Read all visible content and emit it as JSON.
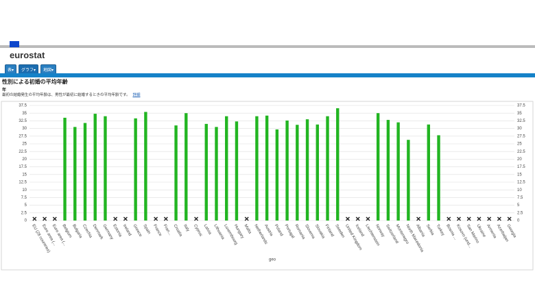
{
  "header": {
    "logo": "eurostat",
    "buttons": [
      "表▾",
      "グラフ▾",
      "地図▾"
    ],
    "title": "性別による初婚の平均年齢",
    "unit": "年",
    "description": "最初の結婚発生の平均年齢は、男性が最初に結婚するときの平均年齢です。",
    "link": "詳細"
  },
  "chart_data": {
    "type": "bar",
    "x_label": "geo",
    "color": "#22b522",
    "grid": true,
    "categories": [
      "EU (28 countries)",
      "Euro area (...",
      "Euro area (...",
      "Belgium",
      "Bulgaria",
      "Czechia",
      "Denmark",
      "Germany",
      "Estonia",
      "Ireland",
      "Greece",
      "Spain",
      "France",
      "Fran...",
      "Croatia",
      "Italy",
      "Cyprus",
      "Latvia",
      "Lithuania",
      "Luxembourg",
      "Hungary",
      "Malta",
      "Netherlands",
      "Austria",
      "Poland",
      "Portugal",
      "Romania",
      "Slovenia",
      "Slovakia",
      "Finland",
      "Sweden",
      "United Kingdom",
      "Iceland",
      "Liechtenstein",
      "Norway",
      "Switzerland",
      "Montenegro",
      "North Macedonia",
      "Albania",
      "Serbia",
      "Turkey",
      "Bosnia ...",
      "Kosovo (und...",
      "San Marino",
      "Ukraine",
      "Armenia",
      "Azerbaijan",
      "Georgia"
    ],
    "values": [
      null,
      null,
      null,
      33.5,
      30.5,
      31.8,
      34.8,
      34,
      null,
      null,
      33.3,
      35.4,
      null,
      null,
      31,
      35,
      null,
      31.5,
      30.5,
      34,
      32.3,
      null,
      34,
      34.2,
      29.7,
      32.6,
      31.2,
      33,
      31.3,
      34,
      36.6,
      null,
      null,
      null,
      35,
      32.8,
      32,
      26.3,
      null,
      31.3,
      27.8,
      null,
      null,
      null,
      null,
      null,
      null,
      null
    ],
    "ylim": [
      0,
      37.5
    ],
    "yticks": [
      0,
      2.5,
      5,
      7.5,
      10,
      12.5,
      15,
      17.5,
      20,
      22.5,
      25,
      27.5,
      30,
      32.5,
      35,
      37.5
    ]
  }
}
